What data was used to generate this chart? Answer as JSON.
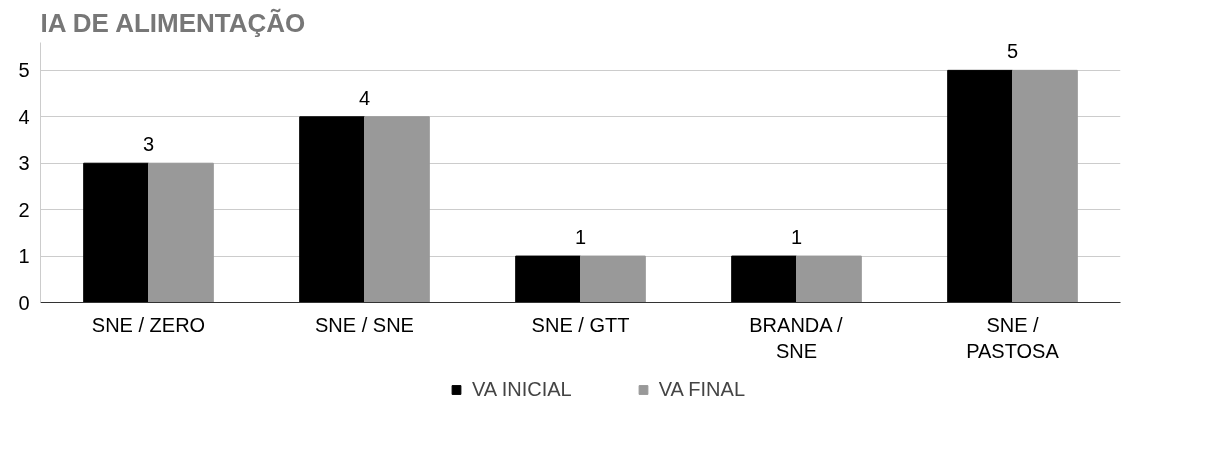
{
  "chart_data": {
    "type": "bar",
    "title": "IA DE ALIMENTAÇÃO",
    "categories": [
      "SNE / ZERO",
      "SNE / SNE",
      "SNE / GTT",
      "BRANDA / SNE",
      "SNE / PASTOSA"
    ],
    "series": [
      {
        "name": "VA INICIAL",
        "color": "#000000",
        "values": [
          3,
          4,
          1,
          1,
          5
        ],
        "value_labels": [
          "3",
          "4",
          "1",
          "1",
          "5"
        ]
      },
      {
        "name": "VA FINAL",
        "color": "#999999",
        "values": [
          3,
          4,
          1,
          1,
          5
        ]
      }
    ],
    "ylim": [
      0,
      5.6
    ],
    "yticks": [
      0,
      1,
      2,
      3,
      4,
      5
    ],
    "grid": "y",
    "legend": "bottom"
  }
}
